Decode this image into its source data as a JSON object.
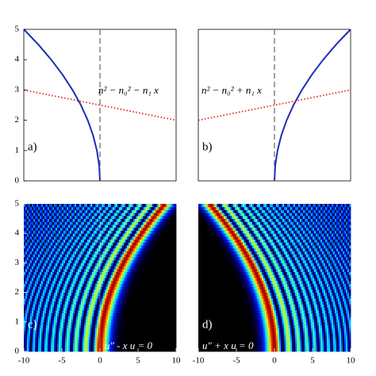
{
  "chart_data": [
    {
      "type": "line",
      "label": "a)",
      "annotation": "n² − n₀² − n₁ x",
      "xlim": [
        -10,
        10
      ],
      "ylim": [
        0,
        5
      ],
      "yticks": [
        0,
        1,
        2,
        3,
        4,
        5
      ],
      "vline": 0,
      "series": [
        {
          "color": "#1c2fb4",
          "style": "solid",
          "x": [
            0,
            -0.1,
            -0.4,
            -0.9,
            -1.6,
            -2.5,
            -3.6,
            -4.9,
            -6.4,
            -8.1,
            -10
          ],
          "values": [
            0,
            0.5,
            1,
            1.5,
            2,
            2.5,
            3,
            3.5,
            4,
            4.5,
            5
          ]
        },
        {
          "color": "#e0281e",
          "style": "dotted",
          "x": [
            -10,
            10
          ],
          "values": [
            3,
            2
          ]
        }
      ]
    },
    {
      "type": "line",
      "label": "b)",
      "annotation": "n² − n₀² + n₁ x",
      "xlim": [
        -10,
        10
      ],
      "ylim": [
        0,
        5
      ],
      "vline": 0,
      "series": [
        {
          "color": "#1c2fb4",
          "style": "solid",
          "x": [
            0,
            0.1,
            0.4,
            0.9,
            1.6,
            2.5,
            3.6,
            4.9,
            6.4,
            8.1,
            10
          ],
          "values": [
            0,
            0.5,
            1,
            1.5,
            2,
            2.5,
            3,
            3.5,
            4,
            4.5,
            5
          ]
        },
        {
          "color": "#e0281e",
          "style": "dotted",
          "x": [
            -10,
            10
          ],
          "values": [
            2,
            3
          ]
        }
      ]
    },
    {
      "type": "heatmap",
      "label": "c)",
      "annotation": "u″ - x u = 0",
      "xlim": [
        -10,
        10
      ],
      "ylim": [
        0,
        5
      ],
      "xticks": [
        -10,
        -5,
        0,
        5,
        10
      ],
      "yticks": [
        0,
        1,
        2,
        3,
        4,
        5
      ]
    },
    {
      "type": "heatmap",
      "label": "d)",
      "annotation": "u″ + x u = 0",
      "xlim": [
        -10,
        10
      ],
      "ylim": [
        0,
        5
      ],
      "xticks": [
        -10,
        -5,
        0,
        5,
        10
      ]
    }
  ]
}
